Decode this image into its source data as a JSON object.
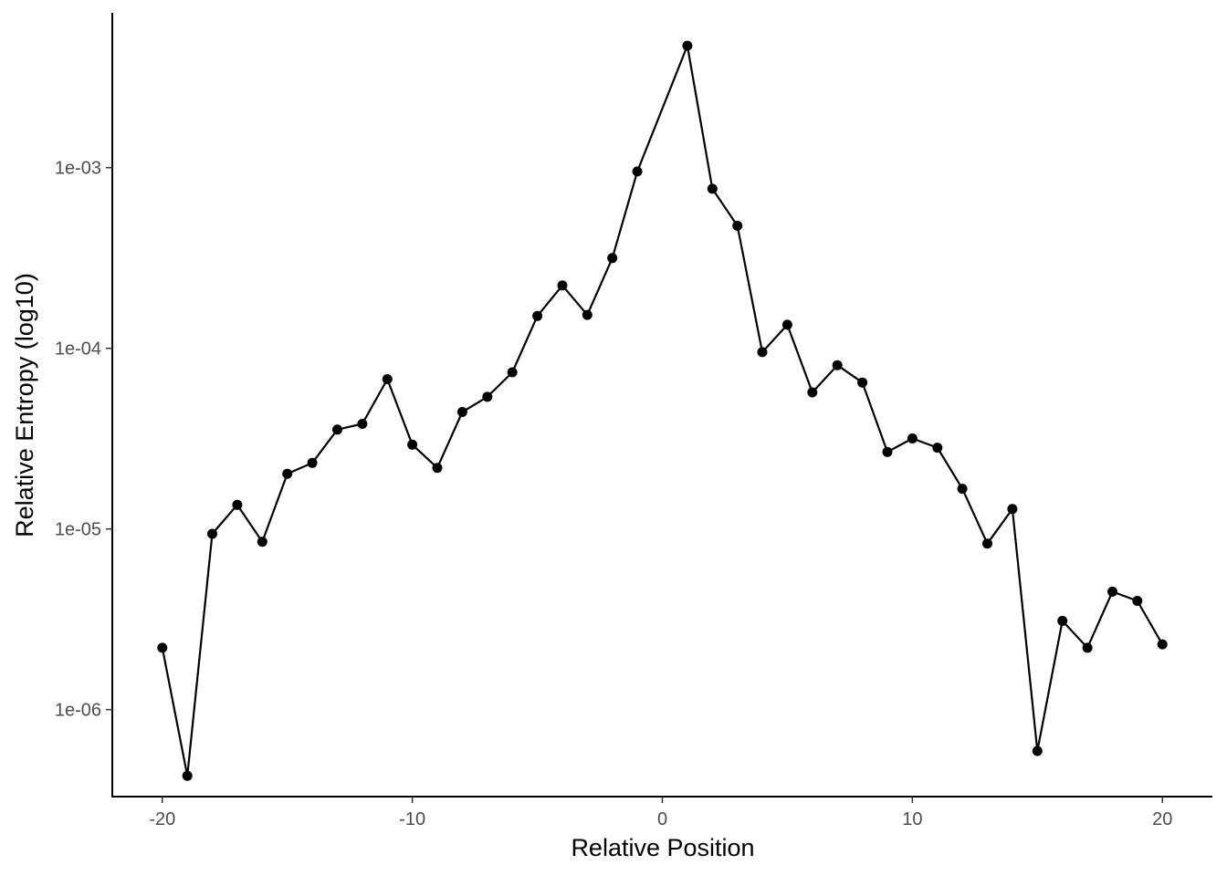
{
  "chart_data": {
    "type": "line",
    "title": "",
    "xlabel": "Relative Position",
    "ylabel": "Relative Entropy (log10)",
    "x_scale": "linear",
    "y_scale": "log10",
    "xlim": [
      -22,
      22
    ],
    "ylim": [
      3.3e-07,
      0.0072
    ],
    "x_ticks": [
      -20,
      -10,
      0,
      10,
      20
    ],
    "x_tick_labels": [
      "-20",
      "-10",
      "0",
      "10",
      "20"
    ],
    "y_ticks": [
      1e-06,
      1e-05,
      0.0001,
      0.001
    ],
    "y_tick_labels": [
      "1e-06",
      "1e-05",
      "1e-04",
      "1e-03"
    ],
    "grid": false,
    "legend": "none",
    "colors": {
      "line": "#000000",
      "points": "#000000",
      "axis": "#000000",
      "tick_label": "#4d4d4d"
    },
    "series": [
      {
        "x": [
          -20,
          -19,
          -18,
          -17,
          -16,
          -15,
          -14,
          -13,
          -12,
          -11,
          -10,
          -9,
          -8,
          -7,
          -6,
          -5,
          -4,
          -3,
          -2,
          -1,
          1,
          2,
          3,
          4,
          5,
          6,
          7,
          8,
          9,
          10,
          11,
          12,
          13,
          14,
          15,
          16,
          17,
          18,
          19,
          20
        ],
        "y": [
          2.2e-06,
          4.3e-07,
          9.4e-06,
          1.36e-05,
          8.5e-06,
          2.02e-05,
          2.32e-05,
          3.55e-05,
          3.82e-05,
          6.75e-05,
          2.93e-05,
          2.18e-05,
          4.44e-05,
          5.39e-05,
          7.37e-05,
          0.000151,
          0.000223,
          0.000153,
          0.000316,
          0.000953,
          0.00473,
          0.000764,
          0.000477,
          9.53e-05,
          0.000135,
          5.7e-05,
          8.07e-05,
          6.47e-05,
          2.67e-05,
          3.17e-05,
          2.82e-05,
          1.67e-05,
          8.3e-06,
          1.29e-05,
          5.9e-07,
          3.1e-06,
          2.2e-06,
          4.5e-06,
          4e-06,
          2.3e-06
        ]
      }
    ]
  }
}
